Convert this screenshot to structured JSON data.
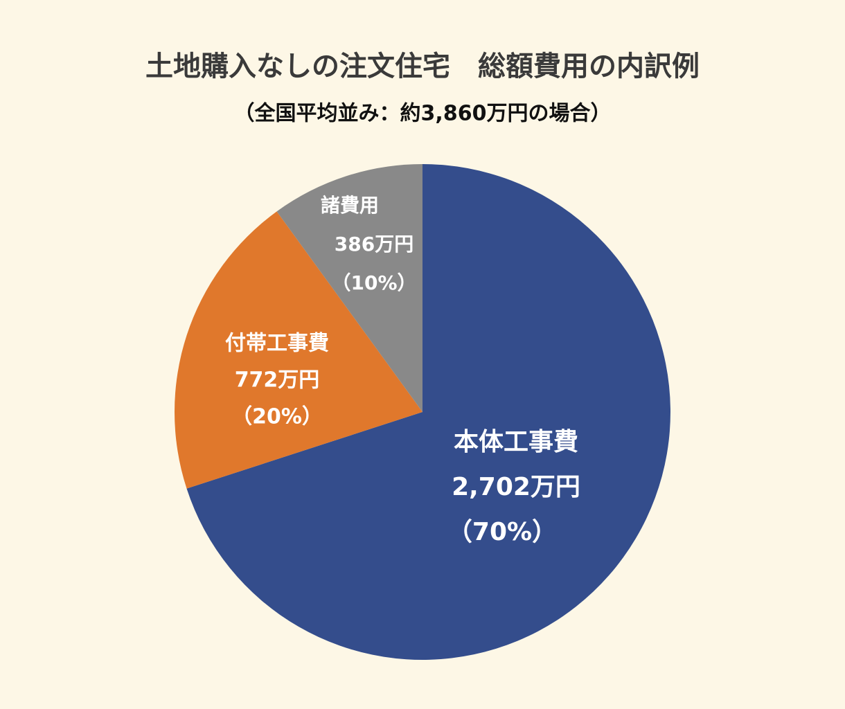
{
  "chart_data": {
    "type": "pie",
    "title": "土地購入なしの注文住宅　総額費用の内訳例",
    "subtitle": "（全国平均並み：約3,860万円の場合）",
    "categories": [
      "本体工事費",
      "付帯工事費",
      "諸費用"
    ],
    "values": [
      70,
      20,
      10
    ],
    "value_labels": [
      "（70%）",
      "（20%）",
      "（10%）"
    ],
    "amounts": [
      2702,
      772,
      386
    ],
    "amount_labels": [
      "2,702万円",
      "772万円",
      "386万円"
    ],
    "colors": [
      "#344d8c",
      "#e0782c",
      "#898989"
    ]
  }
}
